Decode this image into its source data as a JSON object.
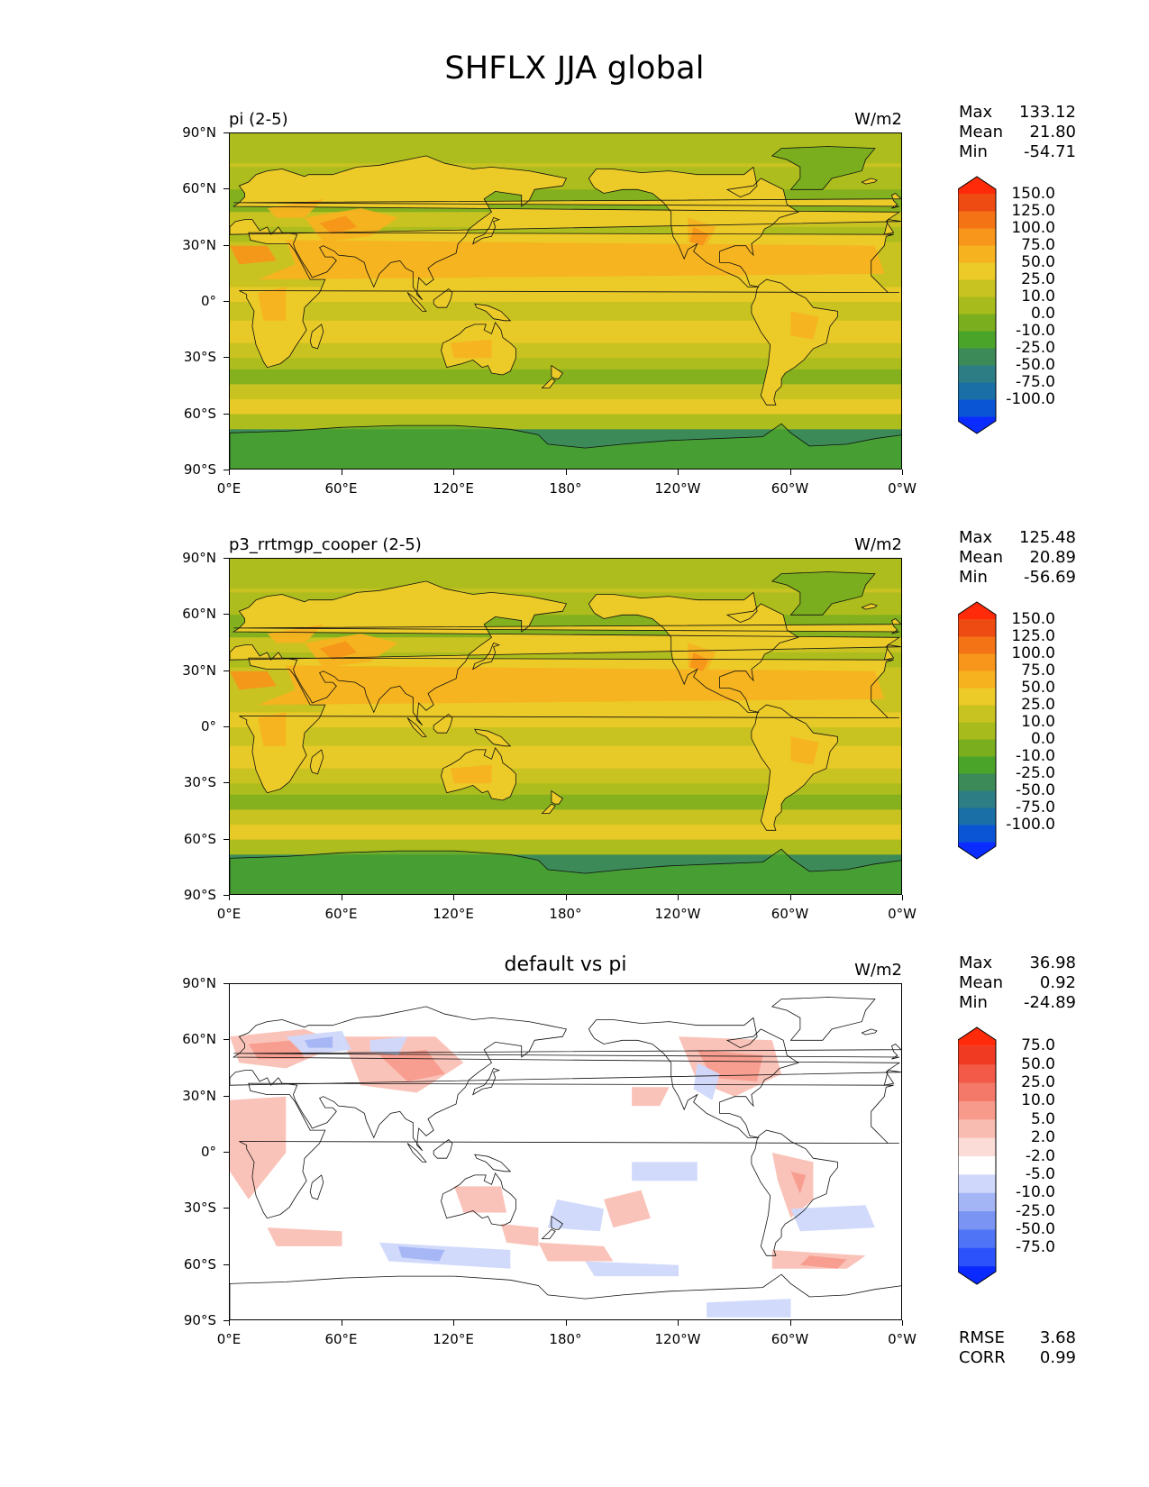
{
  "figure_title": "SHFLX JJA global",
  "panels": [
    {
      "title": "pi (2-5)",
      "title_position": "left",
      "units": "W/m2",
      "stats": {
        "max_label": "Max",
        "max": "133.12",
        "mean_label": "Mean",
        "mean": "21.80",
        "min_label": "Min",
        "min": "-54.71"
      },
      "colorbar": {
        "labels": [
          "150.0",
          "125.0",
          "100.0",
          "75.0",
          "50.0",
          "25.0",
          "10.0",
          "0.0",
          "-10.0",
          "-25.0",
          "-50.0",
          "-75.0",
          "-100.0"
        ],
        "colors": [
          "#0b2cff",
          "#0a55d6",
          "#1a6fa6",
          "#2d7d85",
          "#3b8a58",
          "#4ba42a",
          "#7aae1e",
          "#a7bc1c",
          "#c9c322",
          "#ecca28",
          "#f7b220",
          "#f7961a",
          "#f37315",
          "#ee4b12",
          "#ff2a0a"
        ]
      }
    },
    {
      "title": "p3_rrtmgp_cooper (2-5)",
      "title_position": "left",
      "units": "W/m2",
      "stats": {
        "max_label": "Max",
        "max": "125.48",
        "mean_label": "Mean",
        "mean": "20.89",
        "min_label": "Min",
        "min": "-56.69"
      },
      "colorbar": {
        "labels": [
          "150.0",
          "125.0",
          "100.0",
          "75.0",
          "50.0",
          "25.0",
          "10.0",
          "0.0",
          "-10.0",
          "-25.0",
          "-50.0",
          "-75.0",
          "-100.0"
        ],
        "colors": [
          "#0b2cff",
          "#0a55d6",
          "#1a6fa6",
          "#2d7d85",
          "#3b8a58",
          "#4ba42a",
          "#7aae1e",
          "#a7bc1c",
          "#c9c322",
          "#ecca28",
          "#f7b220",
          "#f7961a",
          "#f37315",
          "#ee4b12",
          "#ff2a0a"
        ]
      }
    },
    {
      "title": "default vs pi",
      "title_position": "center",
      "units": "W/m2",
      "stats": {
        "max_label": "Max",
        "max": "36.98",
        "mean_label": "Mean",
        "mean": "0.92",
        "min_label": "Min",
        "min": "-24.89"
      },
      "extra_stats": {
        "rmse_label": "RMSE",
        "rmse": "3.68",
        "corr_label": "CORR",
        "corr": "0.99"
      },
      "colorbar": {
        "labels": [
          "75.0",
          "50.0",
          "25.0",
          "10.0",
          "5.0",
          "2.0",
          "-2.0",
          "-5.0",
          "-10.0",
          "-25.0",
          "-50.0",
          "-75.0"
        ],
        "colors": [
          "#0a2aff",
          "#2c52fb",
          "#4f74f6",
          "#7a94f3",
          "#a4b5f5",
          "#cfd8fb",
          "#ffffff",
          "#fbdcd6",
          "#f9bcb1",
          "#f79a8c",
          "#f57968",
          "#f35a47",
          "#f03a22",
          "#ff2a0a"
        ]
      }
    }
  ],
  "axes": {
    "y_ticks": [
      "90°N",
      "60°N",
      "30°N",
      "0°",
      "30°S",
      "60°S",
      "90°S"
    ],
    "x_ticks": [
      "0°E",
      "60°E",
      "120°E",
      "180°",
      "120°W",
      "60°W",
      "0°W"
    ]
  },
  "chart_data": [
    {
      "type": "heatmap",
      "title": "pi (2-5)",
      "units": "W/m2",
      "xlim": [
        0,
        360
      ],
      "ylim": [
        -90,
        90
      ],
      "levels": [
        -100,
        -75,
        -50,
        -25,
        -10,
        0,
        10,
        25,
        50,
        75,
        100,
        125,
        150
      ],
      "max": 133.12,
      "mean": 21.8,
      "min": -54.71
    },
    {
      "type": "heatmap",
      "title": "p3_rrtmgp_cooper (2-5)",
      "units": "W/m2",
      "xlim": [
        0,
        360
      ],
      "ylim": [
        -90,
        90
      ],
      "levels": [
        -100,
        -75,
        -50,
        -25,
        -10,
        0,
        10,
        25,
        50,
        75,
        100,
        125,
        150
      ],
      "max": 125.48,
      "mean": 20.89,
      "min": -56.69
    },
    {
      "type": "heatmap",
      "title": "default vs pi",
      "units": "W/m2",
      "xlim": [
        0,
        360
      ],
      "ylim": [
        -90,
        90
      ],
      "levels": [
        -75,
        -50,
        -25,
        -10,
        -5,
        -2,
        2,
        5,
        10,
        25,
        50,
        75
      ],
      "max": 36.98,
      "mean": 0.92,
      "min": -24.89,
      "rmse": 3.68,
      "corr": 0.99
    }
  ]
}
